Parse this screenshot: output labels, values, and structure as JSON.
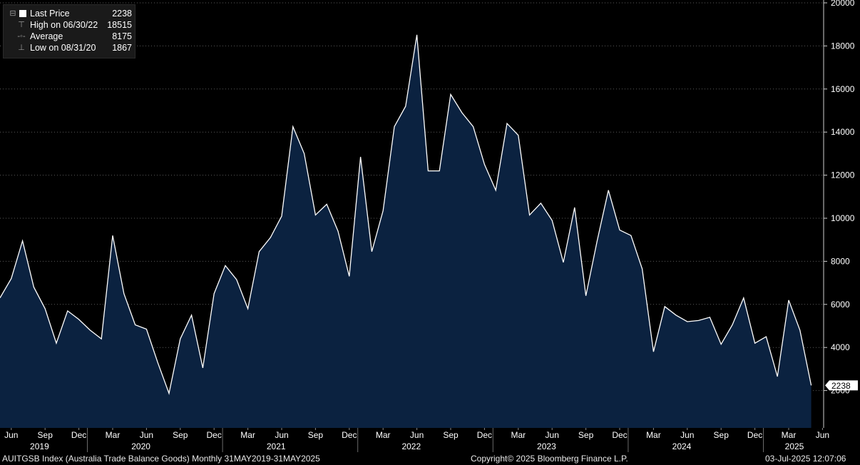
{
  "legend": {
    "last_price_label": "Last Price",
    "last_price_value": "2238",
    "high_label": "High on 06/30/22",
    "high_value": "18515",
    "average_label": "Average",
    "average_value": "8175",
    "low_label": "Low on 08/31/20",
    "low_value": "1867"
  },
  "footer": {
    "left": "AUITGSB Index (Australia Trade Balance Goods)  Monthly 31MAY2019-31MAY2025",
    "center": "Copyright© 2025 Bloomberg Finance L.P.",
    "right": "03-Jul-2025 12:07:06"
  },
  "last_value_label": "2238",
  "colors": {
    "line": "#ffffff",
    "fill": "#0b2240",
    "background": "#000000",
    "axis_text": "#ffffff",
    "grid": "#5a5a5a"
  },
  "chart_data": {
    "type": "area",
    "ylim": [
      0,
      20000
    ],
    "y_ticks": [
      2000,
      4000,
      6000,
      8000,
      10000,
      12000,
      14000,
      16000,
      18000,
      20000
    ],
    "x_month_labels": [
      "Jun",
      "Sep",
      "Dec",
      "Mar",
      "Jun",
      "Sep",
      "Dec",
      "Mar",
      "Jun",
      "Sep",
      "Dec",
      "Mar",
      "Jun",
      "Sep",
      "Dec",
      "Mar",
      "Jun",
      "Sep",
      "Dec",
      "Mar",
      "Jun",
      "Sep",
      "Dec",
      "Mar",
      "Jun"
    ],
    "x_year_labels": [
      "2019",
      "2020",
      "2021",
      "2022",
      "2023",
      "2024",
      "2025"
    ],
    "x": [
      "2019-05",
      "2019-06",
      "2019-07",
      "2019-08",
      "2019-09",
      "2019-10",
      "2019-11",
      "2019-12",
      "2020-01",
      "2020-02",
      "2020-03",
      "2020-04",
      "2020-05",
      "2020-06",
      "2020-07",
      "2020-08",
      "2020-09",
      "2020-10",
      "2020-11",
      "2020-12",
      "2021-01",
      "2021-02",
      "2021-03",
      "2021-04",
      "2021-05",
      "2021-06",
      "2021-07",
      "2021-08",
      "2021-09",
      "2021-10",
      "2021-11",
      "2021-12",
      "2022-01",
      "2022-02",
      "2022-03",
      "2022-04",
      "2022-05",
      "2022-06",
      "2022-07",
      "2022-08",
      "2022-09",
      "2022-10",
      "2022-11",
      "2022-12",
      "2023-01",
      "2023-02",
      "2023-03",
      "2023-04",
      "2023-05",
      "2023-06",
      "2023-07",
      "2023-08",
      "2023-09",
      "2023-10",
      "2023-11",
      "2023-12",
      "2024-01",
      "2024-02",
      "2024-03",
      "2024-04",
      "2024-05",
      "2024-06",
      "2024-07",
      "2024-08",
      "2024-09",
      "2024-10",
      "2024-11",
      "2024-12",
      "2025-01",
      "2025-02",
      "2025-03",
      "2025-04",
      "2025-05"
    ],
    "values": [
      6300,
      7200,
      8950,
      6800,
      5800,
      4200,
      5700,
      5300,
      4800,
      4400,
      9200,
      6500,
      5050,
      4850,
      3300,
      1867,
      4400,
      5500,
      3050,
      6500,
      7800,
      7150,
      5800,
      8450,
      9100,
      10100,
      14250,
      13000,
      10150,
      10650,
      9400,
      7300,
      12850,
      8450,
      10350,
      14250,
      15200,
      18515,
      12200,
      12200,
      15750,
      14900,
      14250,
      12500,
      11300,
      14400,
      13850,
      10150,
      10700,
      9900,
      7950,
      10500,
      6400,
      8950,
      11300,
      9450,
      9200,
      7650,
      3800,
      5900,
      5500,
      5200,
      5250,
      5400,
      4150,
      5050,
      6300,
      4200,
      4500,
      2650,
      6200,
      4800,
      2238
    ]
  }
}
